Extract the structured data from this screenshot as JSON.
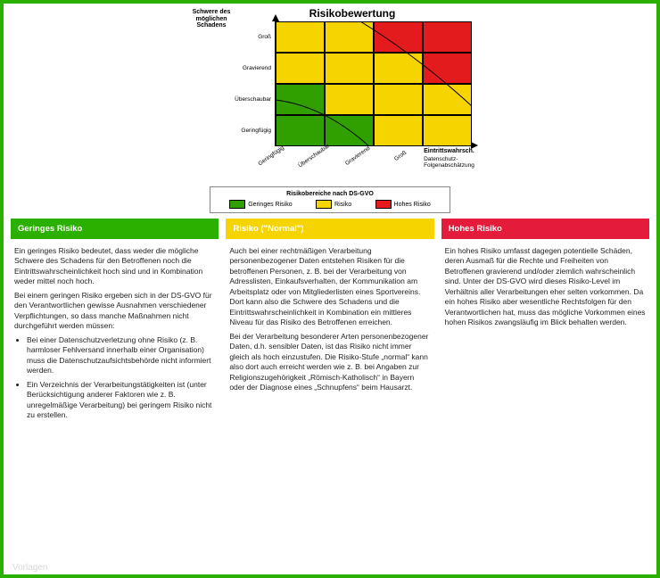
{
  "chart": {
    "title": "Risikobewertung",
    "y_axis_label": "Schwere des möglichen Schadens",
    "x_axis_label": "Eintrittswahrsch.",
    "x_axis_label2": "Datenschutz-Folgenabschätzung",
    "y_ticks": [
      "Groß",
      "Gravierend",
      "Überschaubar",
      "Geringfügig"
    ],
    "x_ticks": [
      "Geringfügig",
      "Überschaubar",
      "Gravierend",
      "Groß"
    ],
    "rows": 4,
    "cols": 4,
    "cell_colors": [
      [
        "#f6d400",
        "#f6d400",
        "#e41b1d",
        "#e41b1d"
      ],
      [
        "#f6d400",
        "#f6d400",
        "#f6d400",
        "#e41b1d"
      ],
      [
        "#30a000",
        "#f6d400",
        "#f6d400",
        "#f6d400"
      ],
      [
        "#30a000",
        "#30a000",
        "#f6d400",
        "#f6d400"
      ]
    ],
    "diagonal_low_from": [
      [
        0,
        80
      ],
      [
        110,
        0
      ]
    ],
    "diagonal_high_from": [
      [
        60,
        140
      ],
      [
        220,
        30
      ]
    ],
    "colors": {
      "low": "#30a000",
      "mid": "#f6d400",
      "high": "#e41b1d"
    },
    "matrix_width": 220,
    "matrix_height": 140
  },
  "legend": {
    "title": "Risikobereiche nach DS-GVO",
    "items": [
      {
        "color": "#30a000",
        "label": "Geringes Risiko"
      },
      {
        "color": "#f6d400",
        "label": "Risiko"
      },
      {
        "color": "#e41b1d",
        "label": "Hohes Risiko"
      }
    ]
  },
  "columns": [
    {
      "header_bg": "#2bb000",
      "title": "Geringes Risiko",
      "paragraphs": [
        "Ein geringes Risiko bedeutet, dass weder die mögliche Schwere des Schadens für den Betroffenen noch die Eintrittswahrscheinlichkeit hoch sind und in Kombination weder mittel noch hoch.",
        "Bei einem geringen Risiko ergeben sich in der DS-GVO für den Verantwortlichen gewisse Ausnahmen verschiedener Verpflichtungen, so dass manche Maßnahmen nicht durchgeführt werden müssen:"
      ],
      "bullets": [
        "Bei einer Datenschutzverletzung ohne Risiko (z. B. harmloser Fehlversand innerhalb einer Organisation) muss die Datenschutzaufsichtsbehörde nicht informiert werden.",
        "Ein Verzeichnis der Verarbeitungstätigkeiten ist (unter Berücksichtigung anderer Faktoren wie z. B. unregelmäßige Verarbeitung) bei geringem Risiko nicht zu erstellen."
      ]
    },
    {
      "header_bg": "#f6d400",
      "title": "Risiko (\"Normal\")",
      "paragraphs": [
        "Auch bei einer rechtmäßigen Verarbeitung personenbezogener Daten entstehen Risiken für die betroffenen Personen, z. B. bei der Verarbeitung von Adresslisten, Einkaufsverhalten, der Kommunikation am Arbeitsplatz oder von Mitgliederlisten eines Sportvereins. Dort kann also die Schwere des Schadens und die Eintrittswahrscheinlichkeit in Kombination ein mittleres Niveau für das Risiko des Betroffenen erreichen.",
        "Bei der Verarbeitung besonderer Arten personenbezogener Daten, d.h. sensibler Daten, ist das Risiko nicht immer gleich als hoch einzustufen. Die Risiko-Stufe „normal“ kann also dort auch erreicht werden wie z. B. bei Angaben zur Religionszugehörigkeit „Römisch-Katholisch“ in Bayern oder der Diagnose eines „Schnupfens“ beim Hausarzt."
      ],
      "bullets": []
    },
    {
      "header_bg": "#e41b3a",
      "title": "Hohes Risiko",
      "paragraphs": [
        "Ein hohes Risiko umfasst dagegen potentielle Schäden, deren Ausmaß für die Rechte und Freiheiten von Betroffenen gravierend und/oder ziemlich wahrscheinlich sind. Unter der DS-GVO wird dieses Risiko-Level im Verhältnis aller Verarbeitungen eher selten vorkommen. Da ein hohes Risiko aber wesentliche Rechtsfolgen für den Verantwortlichen hat, muss das mögliche Vorkommen eines hohen Risikos zwangsläufig im Blick behalten werden."
      ],
      "bullets": []
    }
  ],
  "watermark": "Vorlagen"
}
